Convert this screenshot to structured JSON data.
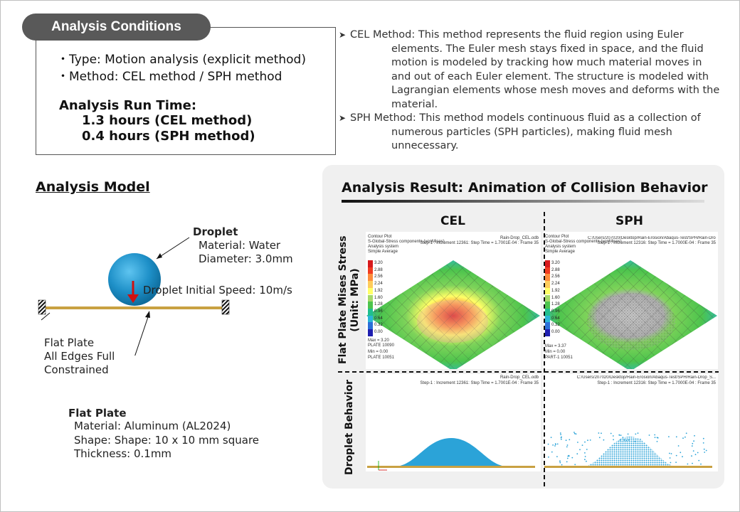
{
  "conditions": {
    "title": "Analysis Conditions",
    "type_line": "・Type: Motion analysis (explicit method)",
    "method_line": "・Method: CEL method / SPH method",
    "run_time_title": "Analysis Run Time:",
    "run_cel": "1.3 hours (CEL method)",
    "run_sph": "0.4 hours (SPH method)"
  },
  "methods": {
    "cel_first": "CEL Method: This method represents the fluid region using Euler",
    "cel_rest": "elements. The Euler mesh stays fixed in space, and the fluid motion is modeled by tracking how much material moves in and out of each Euler element. The structure is modeled with Lagrangian elements whose mesh moves and deforms with the material.",
    "sph_first": "SPH Method: This method models continuous fluid as a collection of",
    "sph_rest": "numerous particles (SPH particles), making fluid mesh unnecessary."
  },
  "model": {
    "title": "Analysis Model",
    "droplet_title": "Droplet",
    "droplet_material": "Material: Water",
    "droplet_diameter": "Diameter: 3.0mm",
    "droplet_speed": "Droplet Initial Speed: 10m/s",
    "plate_note_1": "Flat Plate",
    "plate_note_2": "All Edges Full",
    "plate_note_3": "Constrained",
    "plate_title": "Flat Plate",
    "plate_material": "Material: Aluminum (AL2024)",
    "plate_shape": "Shape: Shape: 10 x 10 mm square",
    "plate_thickness": "Thickness: 0.1mm"
  },
  "result": {
    "title": "Analysis Result: Animation of Collision Behavior",
    "col_cel": "CEL",
    "col_sph": "SPH",
    "row_stress_1": "Flat Plate Mises Stress",
    "row_stress_2": "(Unit: MPa)",
    "row_droplet": "Droplet Behavior",
    "plot_cel_file": "Rain-Drop_CEL.odb",
    "plot_sph_file": "C:/Users/207020/Desktop/Rain-Erosion/Abaqus-Test/SPH/Rain-Drop_S...",
    "plot_cel_step": "Step-1 : Increment   12361: Step Time =   1.7001E-04 : Frame 35",
    "plot_sph_step": "Step-1 : Increment   12316: Step Time =   1.7000E-04 : Frame 35",
    "contour_title": "Contour Plot",
    "contour_var": "S-Global-Stress components (vonMises)",
    "contour_sys": "Analysis system",
    "contour_avg": "Simple Average",
    "legend_values": [
      "3.20",
      "2.88",
      "2.56",
      "2.24",
      "1.92",
      "1.60",
      "1.28",
      "0.96",
      "0.64",
      "0.32",
      "0.00"
    ],
    "legend_colors": [
      "#d7191c",
      "#f03b20",
      "#fd8d3c",
      "#fecc5c",
      "#ffff66",
      "#a6d96a",
      "#4dc44d",
      "#1fbf8f",
      "#2bb5d8",
      "#2b6fd8",
      "#1f1fb0"
    ],
    "cel_max": "Max = 3.20",
    "cel_part": "PLATE 10090",
    "cel_min": "Min = 0.00",
    "cel_part2": "PLATE 10051",
    "sph_max": "Max = 3.37",
    "sph_min": "Min = 0.00",
    "sph_part": "PART-1 10051"
  }
}
